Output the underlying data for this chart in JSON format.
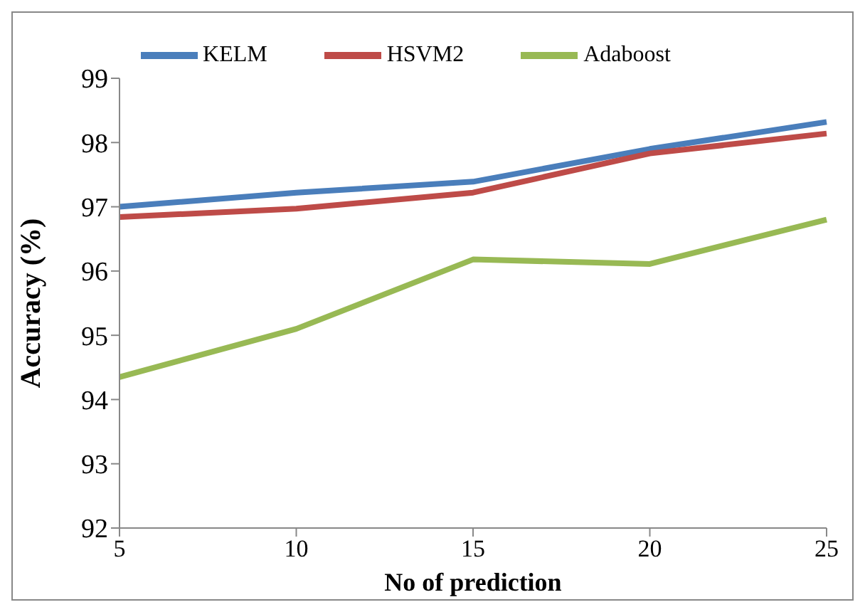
{
  "chart_data": {
    "type": "line",
    "xlabel": "No of prediction",
    "ylabel": "Accuracy (%)",
    "categories": [
      "5",
      "10",
      "15",
      "20",
      "25"
    ],
    "series": [
      {
        "name": "KELM",
        "color": "#4a7ebb",
        "values": [
          97.0,
          97.22,
          97.39,
          97.9,
          98.32
        ]
      },
      {
        "name": "HSVM2",
        "color": "#be4b48",
        "values": [
          96.84,
          96.97,
          97.22,
          97.83,
          98.14
        ]
      },
      {
        "name": "Adaboost",
        "color": "#98b954",
        "values": [
          94.35,
          95.1,
          96.18,
          96.11,
          96.8
        ]
      }
    ],
    "ylim": [
      92,
      99
    ],
    "yticks": [
      92,
      93,
      94,
      95,
      96,
      97,
      98,
      99
    ],
    "grid": false,
    "legend": "top",
    "marker": "none",
    "line_style": "solid"
  }
}
